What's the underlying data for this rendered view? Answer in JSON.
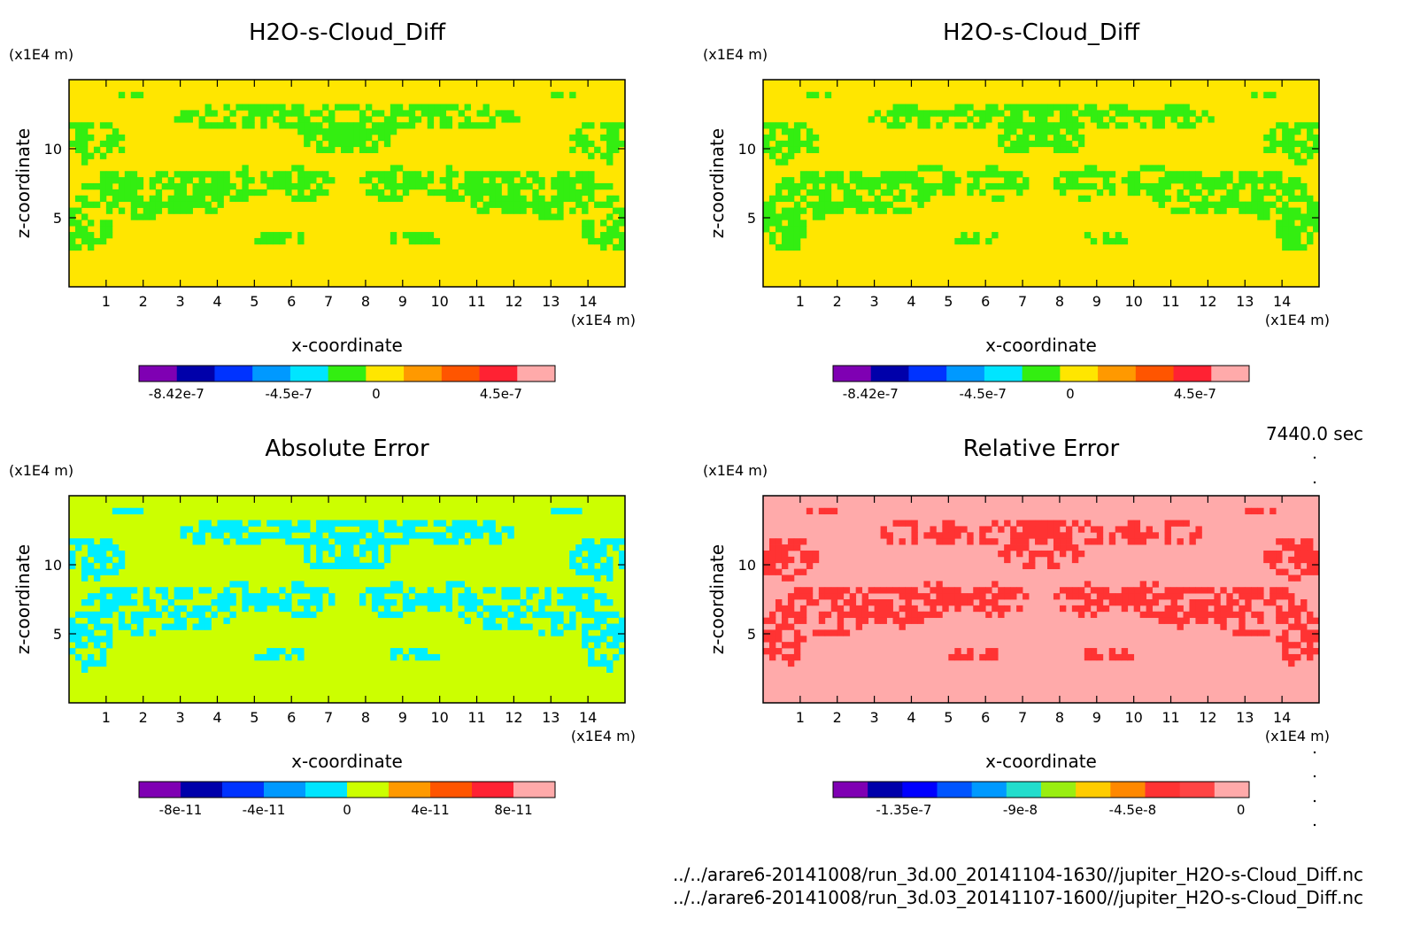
{
  "panels": [
    {
      "title": "H2O-s-Cloud_Diff",
      "z_unit": "(x1E4 m)",
      "x_unit": "(x1E4 m)",
      "xlabel": "x-coordinate",
      "ylabel": "z-coordinate",
      "xticks": [
        "1",
        "2",
        "3",
        "4",
        "5",
        "6",
        "7",
        "8",
        "9",
        "10",
        "11",
        "12",
        "13",
        "14"
      ],
      "yticks": [
        "5",
        "10"
      ],
      "background_color": "#ffe600",
      "pattern_color": "#33ee11",
      "colorbar": {
        "colors": [
          "#7f00b3",
          "#0000aa",
          "#0033ff",
          "#0099ff",
          "#00e5ff",
          "#33ee11",
          "#ffe600",
          "#ff9900",
          "#ff5500",
          "#ff2233",
          "#ffaaaa"
        ],
        "labels": [
          "-8.42e-7",
          "-4.5e-7",
          "0",
          "4.5e-7"
        ]
      }
    },
    {
      "title": "H2O-s-Cloud_Diff",
      "z_unit": "(x1E4 m)",
      "x_unit": "(x1E4 m)",
      "xlabel": "x-coordinate",
      "ylabel": "z-coordinate",
      "xticks": [
        "1",
        "2",
        "3",
        "4",
        "5",
        "6",
        "7",
        "8",
        "9",
        "10",
        "11",
        "12",
        "13",
        "14"
      ],
      "yticks": [
        "5",
        "10"
      ],
      "background_color": "#ffe600",
      "pattern_color": "#33ee11",
      "colorbar": {
        "colors": [
          "#7f00b3",
          "#0000aa",
          "#0033ff",
          "#0099ff",
          "#00e5ff",
          "#33ee11",
          "#ffe600",
          "#ff9900",
          "#ff5500",
          "#ff2233",
          "#ffaaaa"
        ],
        "labels": [
          "-8.42e-7",
          "-4.5e-7",
          "0",
          "4.5e-7"
        ]
      }
    },
    {
      "title": "Absolute Error",
      "z_unit": "(x1E4 m)",
      "x_unit": "(x1E4 m)",
      "xlabel": "x-coordinate",
      "ylabel": "z-coordinate",
      "xticks": [
        "1",
        "2",
        "3",
        "4",
        "5",
        "6",
        "7",
        "8",
        "9",
        "10",
        "11",
        "12",
        "13",
        "14"
      ],
      "yticks": [
        "5",
        "10"
      ],
      "background_color": "#ccff00",
      "pattern_color": "#00eeff",
      "colorbar": {
        "colors": [
          "#7f00b3",
          "#0000aa",
          "#0033ff",
          "#0099ff",
          "#00e5ff",
          "#ccff00",
          "#ff9900",
          "#ff5500",
          "#ff2233",
          "#ffaaaa"
        ],
        "labels": [
          "-8e-11",
          "-4e-11",
          "0",
          "4e-11",
          "8e-11"
        ]
      }
    },
    {
      "title": "Relative Error",
      "z_unit": "(x1E4 m)",
      "x_unit": "(x1E4 m)",
      "xlabel": "x-coordinate",
      "ylabel": "z-coordinate",
      "xticks": [
        "1",
        "2",
        "3",
        "4",
        "5",
        "6",
        "7",
        "8",
        "9",
        "10",
        "11",
        "12",
        "13",
        "14"
      ],
      "yticks": [
        "5",
        "10"
      ],
      "background_color": "#ffaaaa",
      "pattern_color": "#ff3333",
      "colorbar": {
        "colors": [
          "#7f00b3",
          "#0000aa",
          "#0000ff",
          "#0055ff",
          "#0099ff",
          "#22ddcc",
          "#99ee11",
          "#ffcc00",
          "#ff8800",
          "#ff3333",
          "#ff4444",
          "#ffaaaa"
        ],
        "labels": [
          "-1.35e-7",
          "-9e-8",
          "-4.5e-8",
          "0"
        ]
      }
    }
  ],
  "time_label": "7440.0 sec",
  "file_paths": [
    "../../arare6-20141008/run_3d.00_20141104-1630//jupiter_H2O-s-Cloud_Diff.nc",
    "../../arare6-20141008/run_3d.03_20141107-1600//jupiter_H2O-s-Cloud_Diff.nc"
  ],
  "chart_data": [
    {
      "type": "heatmap",
      "title": "H2O-s-Cloud_Diff",
      "xlabel": "x-coordinate",
      "ylabel": "z-coordinate",
      "xlim": [
        0,
        15
      ],
      "ylim": [
        0,
        15
      ],
      "colorbar_ticks": [
        -8.42e-07,
        -4.5e-07,
        0,
        4.5e-07
      ]
    },
    {
      "type": "heatmap",
      "title": "H2O-s-Cloud_Diff",
      "xlabel": "x-coordinate",
      "ylabel": "z-coordinate",
      "xlim": [
        0,
        15
      ],
      "ylim": [
        0,
        15
      ],
      "colorbar_ticks": [
        -8.42e-07,
        -4.5e-07,
        0,
        4.5e-07
      ]
    },
    {
      "type": "heatmap",
      "title": "Absolute Error",
      "xlabel": "x-coordinate",
      "ylabel": "z-coordinate",
      "xlim": [
        0,
        15
      ],
      "ylim": [
        0,
        15
      ],
      "colorbar_ticks": [
        -8e-11,
        -4e-11,
        0,
        4e-11,
        8e-11
      ]
    },
    {
      "type": "heatmap",
      "title": "Relative Error",
      "xlabel": "x-coordinate",
      "ylabel": "z-coordinate",
      "xlim": [
        0,
        15
      ],
      "ylim": [
        0,
        15
      ],
      "colorbar_ticks": [
        -1.35e-07,
        -9e-08,
        -4.5e-08,
        0
      ]
    }
  ]
}
